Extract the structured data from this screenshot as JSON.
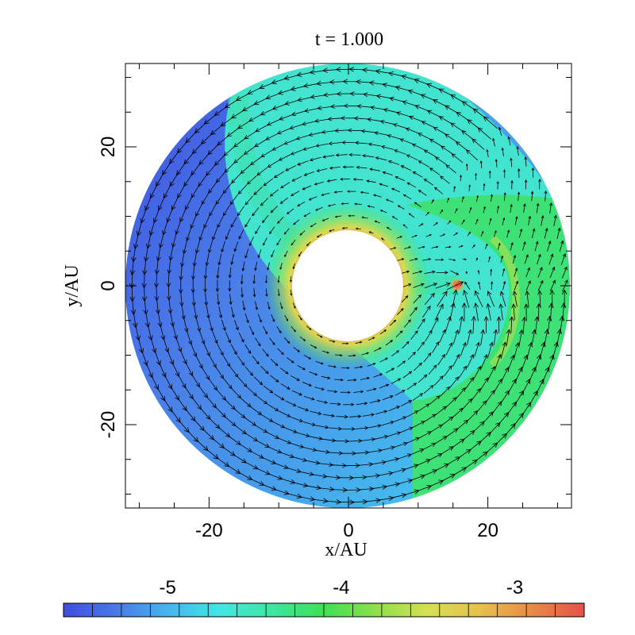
{
  "chart_data": {
    "type": "heatmap",
    "title": "t = 1.000",
    "xlabel": "x/AU",
    "ylabel": "y/AU",
    "xlim": [
      -32,
      32
    ],
    "ylim": [
      -32,
      32
    ],
    "x_ticks": [
      -20,
      0,
      20
    ],
    "y_ticks": [
      -20,
      0,
      20
    ],
    "x_tick_labels": [
      "-20",
      "0",
      "20"
    ],
    "y_tick_labels": [
      "-20",
      "0",
      "20"
    ],
    "disk": {
      "inner_radius_au": 8,
      "outer_radius_au": 32,
      "center": [
        0,
        0
      ]
    },
    "planet": {
      "x": 15.7,
      "y": 0.1
    },
    "colorbar": {
      "min": -5.6,
      "max": -2.6,
      "ticks": [
        -5,
        -4,
        -3
      ],
      "tick_labels": [
        "-5",
        "-4",
        "-3"
      ],
      "segments": 18,
      "colors": [
        "#3f4ee0",
        "#4a78e8",
        "#44b6ee",
        "#42e6e4",
        "#3ee6a0",
        "#3ee054",
        "#8ee04a",
        "#d6e052",
        "#e8c04a",
        "#e88a46",
        "#e6504a"
      ]
    },
    "regions": [
      {
        "name": "low-density outer wedge",
        "value": -5.3
      },
      {
        "name": "outer disk background",
        "value": -4.6
      },
      {
        "name": "post-shock gas near planet",
        "value": -4.0
      },
      {
        "name": "inner rim",
        "value": -3.2
      },
      {
        "name": "planet",
        "value": -2.7
      }
    ],
    "velocity_field": "arrows"
  }
}
